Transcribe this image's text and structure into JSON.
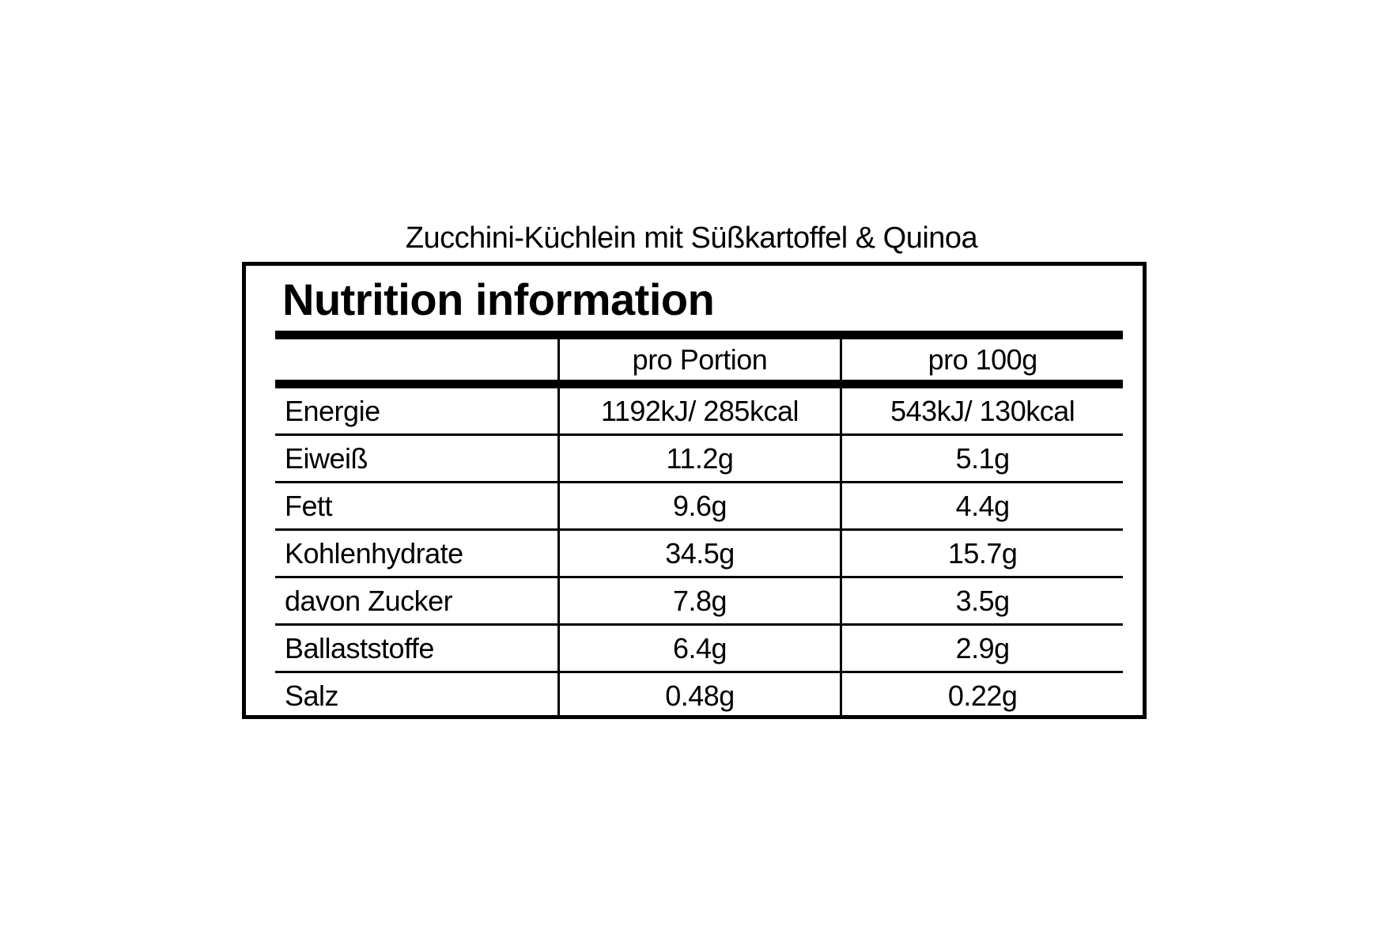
{
  "title": "Zucchini-Küchlein mit Süßkartoffel & Quinoa",
  "heading": "Nutrition information",
  "columns": [
    "",
    "pro Portion",
    "pro 100g"
  ],
  "rows": [
    {
      "label": "Energie",
      "portion": "1192kJ/ 285kcal",
      "per100g": "543kJ/ 130kcal"
    },
    {
      "label": "Eiweiß",
      "portion": "11.2g",
      "per100g": "5.1g"
    },
    {
      "label": "Fett",
      "portion": "9.6g",
      "per100g": "4.4g"
    },
    {
      "label": "Kohlenhydrate",
      "portion": "34.5g",
      "per100g": "15.7g"
    },
    {
      "label": "davon Zucker",
      "portion": "7.8g",
      "per100g": "3.5g"
    },
    {
      "label": "Ballaststoffe",
      "portion": "6.4g",
      "per100g": "2.9g"
    },
    {
      "label": "Salz",
      "portion": "0.48g",
      "per100g": "0.22g"
    }
  ]
}
